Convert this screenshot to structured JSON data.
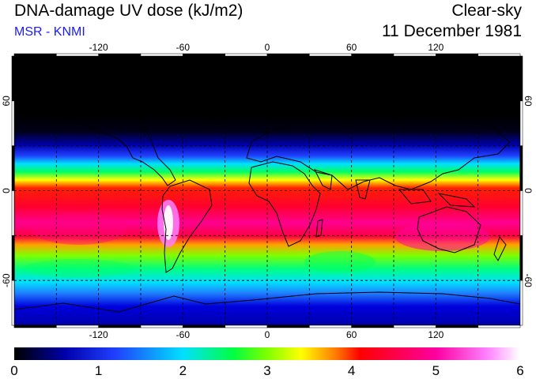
{
  "header": {
    "title": "DNA-damage UV dose (kJ/m2)",
    "source": "MSR - KNMI",
    "condition": "Clear-sky",
    "date": "11 December 1981"
  },
  "map": {
    "projection": "equirectangular",
    "lon_range": [
      -180,
      180
    ],
    "lat_range": [
      -90,
      90
    ],
    "lon_ticks": [
      -120,
      -60,
      0,
      60,
      120
    ],
    "lon_tick_labels": [
      "-120",
      "-60",
      "0",
      "60",
      "120"
    ],
    "lat_ticks": [
      60,
      0,
      -60
    ],
    "lat_tick_labels": [
      "60",
      "0",
      "-60"
    ],
    "grid_lon_step": 30,
    "grid_lat_step": 30,
    "grid_style": "dashed"
  },
  "colorbar": {
    "min": 0,
    "max": 6,
    "labels": [
      "0",
      "1",
      "2",
      "3",
      "4",
      "5",
      "6"
    ],
    "stops": [
      {
        "value": 0.0,
        "color": "#000000"
      },
      {
        "value": 0.6,
        "color": "#0000aa"
      },
      {
        "value": 1.2,
        "color": "#2040ff"
      },
      {
        "value": 2.0,
        "color": "#00e0ff"
      },
      {
        "value": 2.6,
        "color": "#00ff40"
      },
      {
        "value": 3.0,
        "color": "#80ff00"
      },
      {
        "value": 3.4,
        "color": "#ffff00"
      },
      {
        "value": 3.8,
        "color": "#ff8000"
      },
      {
        "value": 4.1,
        "color": "#ff0000"
      },
      {
        "value": 5.0,
        "color": "#ff00a0"
      },
      {
        "value": 5.6,
        "color": "#ff80ff"
      },
      {
        "value": 6.0,
        "color": "#ffffff"
      }
    ]
  },
  "colors": {
    "coastline": "#000000",
    "grid": "#000000"
  }
}
